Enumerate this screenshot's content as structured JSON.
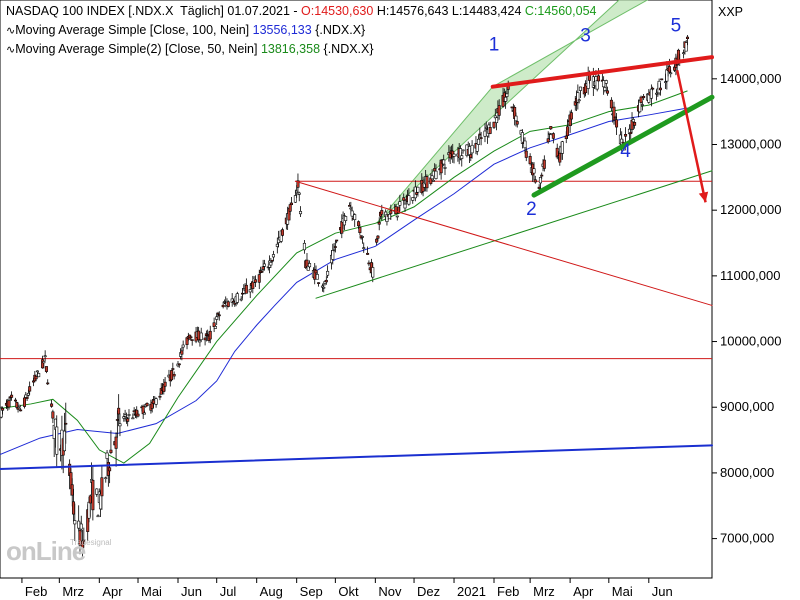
{
  "header": {
    "line1_name": "NASDAQ 100 INDEX [.NDX.X  Täglich] 01.07.2021 - ",
    "line1_open": "O:14530,630",
    "line1_high": " H:14576,643",
    "line1_low": " L:14483,424",
    "line1_close": " C:14560,054",
    "line2": "Moving Average Simple [Close, 100, Nein] ",
    "line2_value": "13556,133",
    "line2_sym": " {.NDX.X}",
    "line3": "Moving Average Simple(2) [Close, 50, Nein] ",
    "line3_value": "13816,358",
    "line3_sym": " {.NDX.X}",
    "symbol_code": "XXP"
  },
  "logo": {
    "main": "onLine",
    "small": "Tradesignal"
  },
  "colors": {
    "up_candle": "#ffffff",
    "down_candle": "#c0392b",
    "ma100": "#1f2bd6",
    "ma50": "#1a8a1a",
    "resistance": "#e01b1b",
    "support": "#1f9a1f",
    "trendline_blue": "#1a2fd0",
    "channel_fill": "#b9e2b2",
    "open_color": "#e01b1b",
    "close_color": "#1a9a1a",
    "ma100_value_color": "#1f2bd6",
    "ma50_value_color": "#1a8a1a"
  },
  "chart_data": {
    "type": "candlestick",
    "title": "NASDAQ 100 INDEX [.NDX.X Täglich] 01.07.2021",
    "xlabel": "",
    "ylabel": "",
    "x_range": [
      "2020-01-15",
      "2021-07-20"
    ],
    "ylim": [
      6400,
      15200
    ],
    "y_ticks": [
      7000,
      8000,
      9000,
      10000,
      11000,
      12000,
      13000,
      14000
    ],
    "y_tick_labels": [
      "7000,000",
      "8000,000",
      "9000,000",
      "10000,000",
      "11000,000",
      "12000,000",
      "13000,000",
      "14000,000"
    ],
    "x_ticks": [
      {
        "date": "2020-02-01",
        "label": "Feb"
      },
      {
        "date": "2020-03-01",
        "label": "Mrz"
      },
      {
        "date": "2020-04-01",
        "label": "Apr"
      },
      {
        "date": "2020-05-01",
        "label": "Mai"
      },
      {
        "date": "2020-06-01",
        "label": "Jun"
      },
      {
        "date": "2020-07-01",
        "label": "Jul"
      },
      {
        "date": "2020-08-01",
        "label": "Aug"
      },
      {
        "date": "2020-09-01",
        "label": "Sep"
      },
      {
        "date": "2020-10-01",
        "label": "Okt"
      },
      {
        "date": "2020-11-01",
        "label": "Nov"
      },
      {
        "date": "2020-12-01",
        "label": "Dez"
      },
      {
        "date": "2021-01-01",
        "label": "2021"
      },
      {
        "date": "2021-02-01",
        "label": "Feb"
      },
      {
        "date": "2021-03-01",
        "label": "Mrz"
      },
      {
        "date": "2021-04-01",
        "label": "Apr"
      },
      {
        "date": "2021-05-01",
        "label": "Mai"
      },
      {
        "date": "2021-06-01",
        "label": "Jun"
      }
    ],
    "price_path": [
      [
        "2020-01-15",
        8900
      ],
      [
        "2020-01-24",
        9120
      ],
      [
        "2020-01-31",
        8950
      ],
      [
        "2020-02-10",
        9380
      ],
      [
        "2020-02-19",
        9720
      ],
      [
        "2020-02-28",
        8450
      ],
      [
        "2020-03-06",
        8550
      ],
      [
        "2020-03-12",
        7450
      ],
      [
        "2020-03-16",
        7100
      ],
      [
        "2020-03-20",
        6950
      ],
      [
        "2020-03-26",
        7700
      ],
      [
        "2020-04-01",
        7500
      ],
      [
        "2020-04-09",
        8250
      ],
      [
        "2020-04-17",
        8800
      ],
      [
        "2020-04-30",
        8900
      ],
      [
        "2020-05-13",
        9050
      ],
      [
        "2020-05-29",
        9550
      ],
      [
        "2020-06-10",
        10100
      ],
      [
        "2020-06-25",
        10050
      ],
      [
        "2020-07-06",
        10550
      ],
      [
        "2020-07-20",
        10700
      ],
      [
        "2020-07-31",
        10900
      ],
      [
        "2020-08-14",
        11300
      ],
      [
        "2020-08-31",
        12200
      ],
      [
        "2020-09-02",
        12420
      ],
      [
        "2020-09-08",
        11200
      ],
      [
        "2020-09-23",
        10850
      ],
      [
        "2020-10-01",
        11450
      ],
      [
        "2020-10-12",
        12100
      ],
      [
        "2020-10-20",
        11700
      ],
      [
        "2020-10-30",
        11050
      ],
      [
        "2020-11-05",
        11900
      ],
      [
        "2020-11-16",
        11950
      ],
      [
        "2020-11-30",
        12250
      ],
      [
        "2020-12-15",
        12500
      ],
      [
        "2020-12-31",
        12880
      ],
      [
        "2021-01-15",
        12900
      ],
      [
        "2021-02-01",
        13350
      ],
      [
        "2021-02-12",
        13800
      ],
      [
        "2021-02-26",
        12900
      ],
      [
        "2021-03-08",
        12300
      ],
      [
        "2021-03-17",
        13200
      ],
      [
        "2021-03-24",
        12800
      ],
      [
        "2021-04-05",
        13650
      ],
      [
        "2021-04-16",
        14000
      ],
      [
        "2021-04-29",
        13900
      ],
      [
        "2021-05-12",
        12950
      ],
      [
        "2021-05-26",
        13650
      ],
      [
        "2021-06-10",
        13900
      ],
      [
        "2021-06-25",
        14350
      ],
      [
        "2021-07-01",
        14560
      ]
    ],
    "series": [
      {
        "name": "Moving Average Simple [Close, 100, Nein]",
        "color": "#1f2bd6",
        "points": [
          [
            "2020-01-15",
            8280
          ],
          [
            "2020-02-15",
            8530
          ],
          [
            "2020-03-15",
            8660
          ],
          [
            "2020-04-15",
            8600
          ],
          [
            "2020-05-15",
            8750
          ],
          [
            "2020-06-15",
            9100
          ],
          [
            "2020-07-01",
            9400
          ],
          [
            "2020-07-15",
            9850
          ],
          [
            "2020-08-01",
            10250
          ],
          [
            "2020-08-15",
            10550
          ],
          [
            "2020-09-01",
            10900
          ],
          [
            "2020-10-01",
            11250
          ],
          [
            "2020-11-01",
            11450
          ],
          [
            "2020-12-01",
            11850
          ],
          [
            "2021-01-01",
            12250
          ],
          [
            "2021-02-01",
            12700
          ],
          [
            "2021-03-01",
            12950
          ],
          [
            "2021-04-01",
            13150
          ],
          [
            "2021-05-01",
            13350
          ],
          [
            "2021-06-01",
            13450
          ],
          [
            "2021-07-01",
            13556
          ]
        ]
      },
      {
        "name": "Moving Average Simple(2) [Close, 50, Nein]",
        "color": "#1a8a1a",
        "points": [
          [
            "2020-01-15",
            8980
          ],
          [
            "2020-02-08",
            9050
          ],
          [
            "2020-02-25",
            9120
          ],
          [
            "2020-03-15",
            8800
          ],
          [
            "2020-04-01",
            8350
          ],
          [
            "2020-04-20",
            8150
          ],
          [
            "2020-05-10",
            8450
          ],
          [
            "2020-06-01",
            9150
          ],
          [
            "2020-07-01",
            10000
          ],
          [
            "2020-08-01",
            10700
          ],
          [
            "2020-09-01",
            11350
          ],
          [
            "2020-10-01",
            11650
          ],
          [
            "2020-11-01",
            11800
          ],
          [
            "2020-12-01",
            12050
          ],
          [
            "2021-01-01",
            12500
          ],
          [
            "2021-02-01",
            12900
          ],
          [
            "2021-03-01",
            13200
          ],
          [
            "2021-04-01",
            13300
          ],
          [
            "2021-05-01",
            13500
          ],
          [
            "2021-06-01",
            13600
          ],
          [
            "2021-07-01",
            13816
          ]
        ]
      }
    ],
    "drawings": [
      {
        "kind": "channel",
        "upper": [
          [
            "2021-01-31",
            13880
          ],
          [
            "2021-06-18",
            15400
          ]
        ],
        "lower": [
          [
            "2020-11-02",
            11800
          ],
          [
            "2021-05-20",
            15400
          ]
        ],
        "color": "#b9e2b2"
      },
      {
        "kind": "line",
        "name": "resistance",
        "color": "#e01b1b",
        "width": 4,
        "from": [
          "2021-01-31",
          13880
        ],
        "to": [
          "2021-07-20",
          14330
        ]
      },
      {
        "kind": "line",
        "name": "support",
        "color": "#1f9a1f",
        "width": 5,
        "from": [
          "2021-03-04",
          12230
        ],
        "to": [
          "2021-07-20",
          13720
        ]
      },
      {
        "kind": "line",
        "name": "thin-green-trend",
        "color": "#1a8a1a",
        "width": 1,
        "from": [
          "2020-09-16",
          10660
        ],
        "to": [
          "2021-07-20",
          12600
        ]
      },
      {
        "kind": "line",
        "name": "red-declining",
        "color": "#d01818",
        "width": 1,
        "from": [
          "2020-08-31",
          12440
        ],
        "to": [
          "2021-07-20",
          10550
        ]
      },
      {
        "kind": "hline",
        "name": "red-horizontal-upper",
        "color": "#d01818",
        "width": 1,
        "from": "2020-08-31",
        "value": 12440
      },
      {
        "kind": "hline",
        "name": "red-horizontal-lower",
        "color": "#d01818",
        "width": 1,
        "from": "2020-01-15",
        "value": 9740
      },
      {
        "kind": "line",
        "name": "blue-long-trend",
        "color": "#1a2fd0",
        "width": 2,
        "from": [
          "2020-01-15",
          8060
        ],
        "to": [
          "2021-07-20",
          8420
        ]
      },
      {
        "kind": "arrow",
        "name": "down-arrow",
        "color": "#e01b1b",
        "from": [
          "2021-06-23",
          14130
        ],
        "to": [
          "2021-07-15",
          12120
        ]
      }
    ],
    "annotations": [
      {
        "text": "1",
        "at": [
          "2021-02-01",
          14430
        ]
      },
      {
        "text": "2",
        "at": [
          "2021-03-02",
          11930
        ]
      },
      {
        "text": "3",
        "at": [
          "2021-04-13",
          14570
        ]
      },
      {
        "text": "4",
        "at": [
          "2021-05-14",
          12810
        ]
      },
      {
        "text": "5",
        "at": [
          "2021-06-22",
          14720
        ]
      }
    ]
  }
}
